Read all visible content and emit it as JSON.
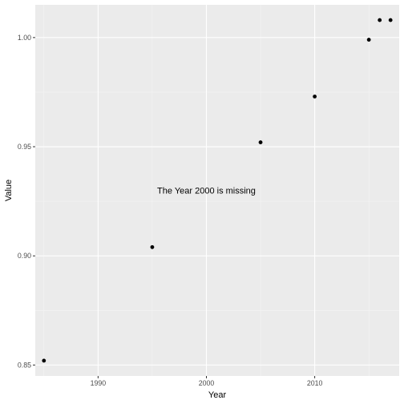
{
  "chart_data": {
    "type": "scatter",
    "xlabel": "Year",
    "ylabel": "Value",
    "xlim": [
      1984.2,
      2017.8
    ],
    "ylim": [
      0.845,
      1.015
    ],
    "x_ticks": [
      1990,
      2000,
      2010
    ],
    "y_ticks": [
      0.85,
      0.9,
      0.95,
      1.0
    ],
    "x_tick_labels": [
      "1990",
      "2000",
      "2010"
    ],
    "y_tick_labels": [
      "0.85",
      "0.90",
      "0.95",
      "1.00"
    ],
    "points": [
      {
        "x": 1985,
        "y": 0.852
      },
      {
        "x": 1995,
        "y": 0.904
      },
      {
        "x": 2005,
        "y": 0.952
      },
      {
        "x": 2010,
        "y": 0.973
      },
      {
        "x": 2015,
        "y": 0.999
      },
      {
        "x": 2016,
        "y": 1.008
      },
      {
        "x": 2017,
        "y": 1.008
      }
    ],
    "annotations": [
      {
        "text": "The Year 2000 is missing",
        "x": 2000,
        "y": 0.93
      }
    ],
    "grid": true,
    "colors": {
      "panel": "#ebebeb",
      "grid_major": "#ffffff",
      "grid_minor": "#f5f5f5",
      "point": "#000000",
      "tick": "#333333"
    }
  }
}
